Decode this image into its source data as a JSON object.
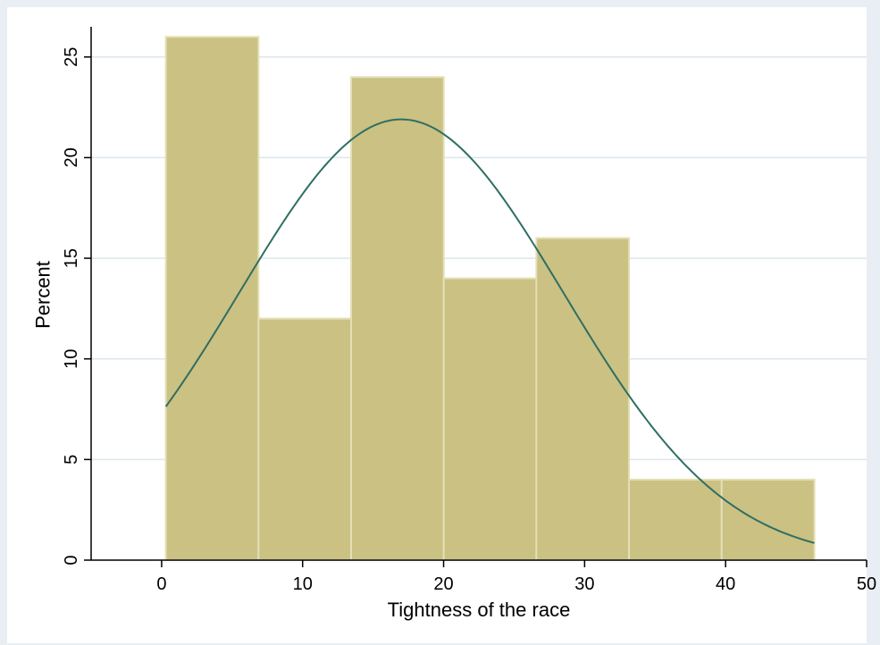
{
  "chart_data": {
    "type": "bar",
    "subtype": "histogram",
    "xlabel": "Tightness of the race",
    "ylabel": "Percent",
    "xlim": [
      -5,
      50
    ],
    "ylim": [
      0,
      26.5
    ],
    "xticks": [
      0,
      10,
      20,
      30,
      40,
      50
    ],
    "yticks": [
      0,
      5,
      10,
      15,
      20,
      25
    ],
    "grid": true,
    "bins": [
      {
        "start": 0.3,
        "end": 6.87,
        "value": 26
      },
      {
        "start": 6.87,
        "end": 13.44,
        "value": 12
      },
      {
        "start": 13.44,
        "end": 20.01,
        "value": 24
      },
      {
        "start": 20.01,
        "end": 26.58,
        "value": 14
      },
      {
        "start": 26.58,
        "end": 33.15,
        "value": 16
      },
      {
        "start": 33.15,
        "end": 39.72,
        "value": 4
      },
      {
        "start": 39.72,
        "end": 46.3,
        "value": 4
      }
    ],
    "normal_overlay": {
      "mean": 17.0,
      "sd": 11.5,
      "x_range": [
        0.3,
        46.3
      ],
      "peak": 21.9
    },
    "colors": {
      "bar_fill": "#cbc182",
      "bar_edge": "#e4dfb6",
      "curve": "#2f6e64",
      "grid": "#dbe6ec",
      "plot_bg": "#ffffff",
      "frame_bg": "#e8eef3"
    }
  }
}
